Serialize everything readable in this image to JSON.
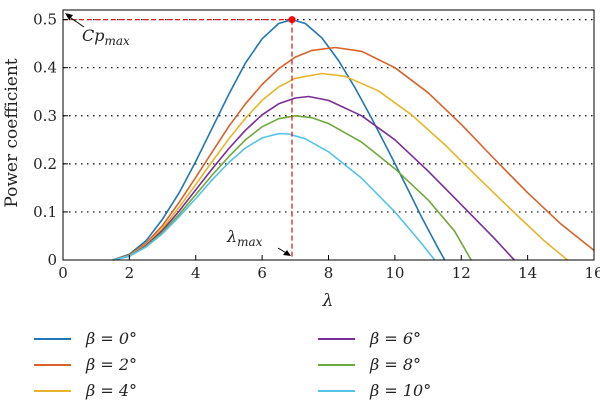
{
  "chart_data": {
    "type": "line",
    "xlabel": "λ",
    "ylabel": "Power coefficient",
    "xlim": [
      0,
      16
    ],
    "ylim": [
      0,
      0.52
    ],
    "x_ticks": [
      "0",
      "2",
      "4",
      "6",
      "8",
      "10",
      "12",
      "14",
      "16"
    ],
    "y_ticks": [
      "0",
      "0.1",
      "0.2",
      "0.3",
      "0.4",
      "0.5"
    ],
    "grid": "horizontal dotted",
    "series": [
      {
        "name": "β = 0°",
        "color": "#1f77b4",
        "points": [
          [
            1.5,
            0
          ],
          [
            2,
            0.012
          ],
          [
            2.5,
            0.04
          ],
          [
            3,
            0.085
          ],
          [
            3.5,
            0.14
          ],
          [
            4,
            0.205
          ],
          [
            4.5,
            0.275
          ],
          [
            5,
            0.345
          ],
          [
            5.5,
            0.41
          ],
          [
            6,
            0.46
          ],
          [
            6.5,
            0.492
          ],
          [
            6.9,
            0.5
          ],
          [
            7.3,
            0.492
          ],
          [
            7.8,
            0.462
          ],
          [
            8.3,
            0.415
          ],
          [
            8.8,
            0.358
          ],
          [
            9.3,
            0.295
          ],
          [
            9.8,
            0.228
          ],
          [
            10.3,
            0.16
          ],
          [
            10.8,
            0.09
          ],
          [
            11.3,
            0.025
          ],
          [
            11.5,
            0
          ]
        ]
      },
      {
        "name": "β = 2°",
        "color": "#d9622b",
        "points": [
          [
            1.5,
            0
          ],
          [
            2,
            0.01
          ],
          [
            2.5,
            0.035
          ],
          [
            3,
            0.072
          ],
          [
            3.5,
            0.12
          ],
          [
            4,
            0.172
          ],
          [
            4.5,
            0.225
          ],
          [
            5,
            0.278
          ],
          [
            5.5,
            0.325
          ],
          [
            6,
            0.365
          ],
          [
            6.5,
            0.398
          ],
          [
            7,
            0.422
          ],
          [
            7.5,
            0.436
          ],
          [
            8.2,
            0.442
          ],
          [
            9,
            0.434
          ],
          [
            10,
            0.4
          ],
          [
            11,
            0.348
          ],
          [
            12,
            0.282
          ],
          [
            13,
            0.21
          ],
          [
            14,
            0.14
          ],
          [
            15,
            0.075
          ],
          [
            16,
            0.02
          ]
        ]
      },
      {
        "name": "β = 4°",
        "color": "#e8b52a",
        "points": [
          [
            1.5,
            0
          ],
          [
            2,
            0.009
          ],
          [
            2.5,
            0.032
          ],
          [
            3,
            0.066
          ],
          [
            3.5,
            0.11
          ],
          [
            4,
            0.157
          ],
          [
            4.5,
            0.205
          ],
          [
            5,
            0.252
          ],
          [
            5.5,
            0.295
          ],
          [
            6,
            0.332
          ],
          [
            6.5,
            0.36
          ],
          [
            7,
            0.378
          ],
          [
            7.8,
            0.388
          ],
          [
            8.5,
            0.382
          ],
          [
            9.5,
            0.352
          ],
          [
            10.5,
            0.302
          ],
          [
            11.5,
            0.24
          ],
          [
            12.5,
            0.172
          ],
          [
            13.5,
            0.105
          ],
          [
            14.5,
            0.04
          ],
          [
            15.2,
            0
          ]
        ]
      },
      {
        "name": "β = 6°",
        "color": "#7b2d96",
        "points": [
          [
            1.5,
            0
          ],
          [
            2,
            0.008
          ],
          [
            2.5,
            0.03
          ],
          [
            3,
            0.062
          ],
          [
            3.5,
            0.102
          ],
          [
            4,
            0.146
          ],
          [
            4.5,
            0.19
          ],
          [
            5,
            0.232
          ],
          [
            5.5,
            0.27
          ],
          [
            6,
            0.302
          ],
          [
            6.5,
            0.325
          ],
          [
            7,
            0.337
          ],
          [
            7.4,
            0.34
          ],
          [
            8,
            0.332
          ],
          [
            9,
            0.3
          ],
          [
            10,
            0.25
          ],
          [
            11,
            0.185
          ],
          [
            12,
            0.115
          ],
          [
            13,
            0.045
          ],
          [
            13.6,
            0
          ]
        ]
      },
      {
        "name": "β = 8°",
        "color": "#6fa83a",
        "points": [
          [
            1.5,
            0
          ],
          [
            2,
            0.008
          ],
          [
            2.5,
            0.028
          ],
          [
            3,
            0.058
          ],
          [
            3.5,
            0.095
          ],
          [
            4,
            0.136
          ],
          [
            4.5,
            0.177
          ],
          [
            5,
            0.215
          ],
          [
            5.5,
            0.25
          ],
          [
            6,
            0.277
          ],
          [
            6.5,
            0.294
          ],
          [
            7,
            0.3
          ],
          [
            7.5,
            0.296
          ],
          [
            8,
            0.284
          ],
          [
            9,
            0.245
          ],
          [
            10,
            0.19
          ],
          [
            11,
            0.125
          ],
          [
            11.8,
            0.06
          ],
          [
            12.3,
            0
          ]
        ]
      },
      {
        "name": "β = 10°",
        "color": "#55c3e8",
        "points": [
          [
            1.5,
            0
          ],
          [
            2,
            0.008
          ],
          [
            2.5,
            0.027
          ],
          [
            3,
            0.055
          ],
          [
            3.5,
            0.09
          ],
          [
            4,
            0.128
          ],
          [
            4.5,
            0.167
          ],
          [
            5,
            0.203
          ],
          [
            5.5,
            0.233
          ],
          [
            6,
            0.254
          ],
          [
            6.5,
            0.263
          ],
          [
            6.8,
            0.262
          ],
          [
            7.3,
            0.252
          ],
          [
            8,
            0.225
          ],
          [
            9,
            0.17
          ],
          [
            10,
            0.1
          ],
          [
            10.8,
            0.035
          ],
          [
            11.2,
            0
          ]
        ]
      }
    ],
    "marker": {
      "x": 6.9,
      "y": 0.5,
      "color": "#ff0000"
    },
    "annotations": {
      "cp_label": "Cp",
      "cp_sub": "max",
      "lambda_label": "λ",
      "lambda_sub": "max"
    },
    "legend_placement": "bottom, two columns"
  }
}
